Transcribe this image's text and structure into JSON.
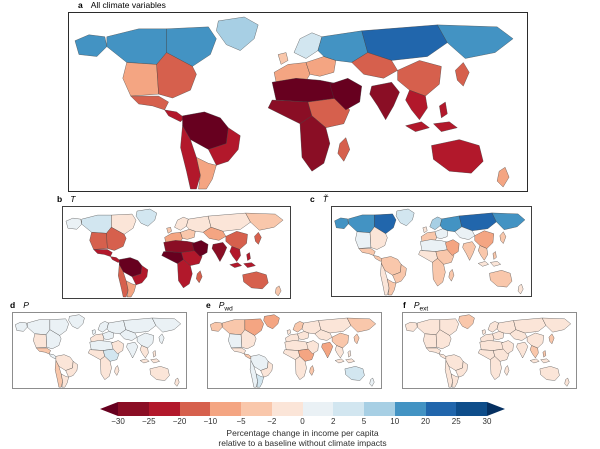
{
  "figure": {
    "panels": [
      {
        "key": "a",
        "label": "a",
        "title": "All climate variables",
        "symbol": "",
        "sub": ""
      },
      {
        "key": "b",
        "label": "b",
        "title": "",
        "symbol": "T",
        "sub": ""
      },
      {
        "key": "c",
        "label": "c",
        "title": "",
        "symbol": "T̃",
        "sub": ""
      },
      {
        "key": "d",
        "label": "d",
        "title": "",
        "symbol": "P",
        "sub": ""
      },
      {
        "key": "e",
        "label": "e",
        "title": "",
        "symbol": "P",
        "sub": "wd"
      },
      {
        "key": "f",
        "label": "f",
        "title": "",
        "symbol": "P",
        "sub": "ext"
      }
    ]
  },
  "chart_data": {
    "type": "heatmap",
    "subtype": "world-choropleth-small-multiples",
    "description": "Six world maps of percentage change in income per capita; panel a combines all climate variables, panels b-f show individual variables",
    "units": "%",
    "colorbar": {
      "caption_line1": "Percentage change in income per capita",
      "caption_line2": "relative to a baseline without climate impacts",
      "ticks": [
        -30,
        -25,
        -20,
        -10,
        -5,
        -2,
        0,
        2,
        5,
        10,
        20,
        25,
        30
      ],
      "tick_labels": [
        "−30",
        "−25",
        "−20",
        "−10",
        "−5",
        "−2",
        "0",
        "2",
        "5",
        "10",
        "20",
        "25",
        "30"
      ],
      "colors": [
        "#67001f",
        "#8a0e25",
        "#b2182b",
        "#d6604d",
        "#f4a582",
        "#f9c7ab",
        "#fbe5d8",
        "#eaf1f5",
        "#d2e6f0",
        "#a7cfe4",
        "#4393c3",
        "#2166ac",
        "#0e4d8a",
        "#053061"
      ]
    },
    "panels": {
      "a": {
        "title": "All climate variables",
        "values": {
          "alaska": 12,
          "canada_w": 12,
          "canada_e": 15,
          "greenland": 8,
          "usa_w": -8,
          "usa_e": -12,
          "mexico": -15,
          "central_america": -22,
          "amazon": -32,
          "brazil_e": -22,
          "andes": -22,
          "argentina": -8,
          "uk": -4,
          "scandinavia": 4,
          "europe_w": -8,
          "europe_e": -6,
          "russia_w": 12,
          "siberia": 22,
          "russia_fe": 12,
          "sahara": -32,
          "africa_w": -27,
          "africa_e": -12,
          "africa_s": -27,
          "madagascar": -15,
          "middle_east": -32,
          "central_asia": -12,
          "china": -12,
          "india": -27,
          "se_asia": -22,
          "indonesia": -22,
          "japan": -15,
          "australia": -22,
          "new_zealand": -8
        }
      },
      "b": {
        "title": "T",
        "values": {
          "alaska": 1,
          "canada_w": 3,
          "canada_e": -1,
          "greenland": 3,
          "usa_w": -12,
          "usa_e": -12,
          "mexico": -22,
          "central_america": -22,
          "amazon": -32,
          "brazil_e": -22,
          "andes": -15,
          "argentina": -6,
          "uk": -4,
          "scandinavia": -1,
          "europe_w": -8,
          "europe_e": -4,
          "russia_w": -1,
          "siberia": -1,
          "russia_fe": -3,
          "sahara": -27,
          "africa_w": -32,
          "africa_e": -22,
          "africa_s": -22,
          "madagascar": -15,
          "middle_east": -32,
          "central_asia": -8,
          "china": -12,
          "india": -27,
          "se_asia": -22,
          "indonesia": -22,
          "japan": -12,
          "australia": -18,
          "new_zealand": -4
        }
      },
      "c": {
        "title": "T-variability",
        "values": {
          "alaska": 12,
          "canada_w": 15,
          "canada_e": 22,
          "greenland": 4,
          "usa_w": 1,
          "usa_e": -1,
          "mexico": -3,
          "central_america": -3,
          "amazon": -3,
          "brazil_e": -3,
          "andes": -1,
          "argentina": -3,
          "uk": -1,
          "scandinavia": 8,
          "europe_w": -3,
          "europe_e": 1,
          "russia_w": 12,
          "siberia": 22,
          "russia_fe": 15,
          "sahara": 1,
          "africa_w": -1,
          "africa_e": -3,
          "africa_s": -3,
          "madagascar": -3,
          "middle_east": -6,
          "central_asia": 1,
          "china": -6,
          "india": -3,
          "se_asia": -3,
          "indonesia": -1,
          "japan": -3,
          "australia": -3,
          "new_zealand": -1
        }
      },
      "d": {
        "title": "P",
        "values": {
          "alaska": 1,
          "canada_w": 1,
          "canada_e": 1,
          "greenland": 1,
          "usa_w": -1,
          "usa_e": 1,
          "mexico": -3,
          "central_america": 1,
          "amazon": -1,
          "brazil_e": -1,
          "andes": -3,
          "argentina": -1,
          "uk": 1,
          "scandinavia": 1,
          "europe_w": -1,
          "europe_e": 1,
          "russia_w": 1,
          "siberia": 1,
          "russia_fe": 1,
          "sahara": 1,
          "africa_w": -1,
          "africa_e": 3,
          "africa_s": -1,
          "madagascar": -1,
          "middle_east": -1,
          "central_asia": 1,
          "china": 1,
          "india": 1,
          "se_asia": -1,
          "indonesia": -1,
          "japan": 1,
          "australia": -1,
          "new_zealand": -1
        }
      },
      "e": {
        "title": "Pwd",
        "values": {
          "alaska": -4,
          "canada_w": -4,
          "canada_e": -6,
          "greenland": -6,
          "usa_w": 1,
          "usa_e": -1,
          "mexico": -1,
          "central_america": -3,
          "amazon": 1,
          "brazil_e": -1,
          "andes": 1,
          "argentina": 3,
          "uk": -1,
          "scandinavia": -3,
          "europe_w": -1,
          "europe_e": -1,
          "russia_w": -1,
          "siberia": -1,
          "russia_fe": -3,
          "sahara": -1,
          "africa_w": -1,
          "africa_e": -6,
          "africa_s": -1,
          "madagascar": -3,
          "middle_east": -1,
          "central_asia": -1,
          "china": -3,
          "india": -6,
          "se_asia": -1,
          "indonesia": -1,
          "japan": -3,
          "australia": 3,
          "new_zealand": 1
        }
      },
      "f": {
        "title": "Pext",
        "values": {
          "alaska": -1,
          "canada_w": -1,
          "canada_e": -1,
          "greenland": -3,
          "usa_w": -1,
          "usa_e": -1,
          "mexico": -1,
          "central_america": -1,
          "amazon": -1,
          "brazil_e": -1,
          "andes": -1,
          "argentina": -1,
          "uk": -1,
          "scandinavia": -1,
          "europe_w": -1,
          "europe_e": -1,
          "russia_w": -1,
          "siberia": -1,
          "russia_fe": -1,
          "sahara": -1,
          "africa_w": -1,
          "africa_e": -1,
          "africa_s": -1,
          "madagascar": -1,
          "middle_east": -1,
          "central_asia": -1,
          "china": -1,
          "india": -1,
          "se_asia": -3,
          "indonesia": -1,
          "japan": -3,
          "australia": -1,
          "new_zealand": -1
        }
      }
    }
  }
}
